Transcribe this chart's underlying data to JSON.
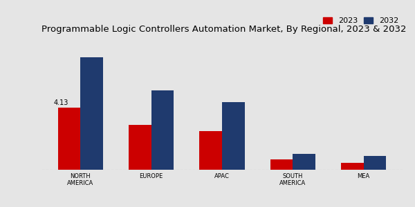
{
  "title": "Programmable Logic Controllers Automation Market, By Regional, 2023 & 2032",
  "categories": [
    "NORTH\nAMERICA",
    "EUROPE",
    "APAC",
    "SOUTH\nAMERICA",
    "MEA"
  ],
  "values_2023": [
    4.13,
    3.0,
    2.6,
    0.7,
    0.45
  ],
  "values_2032": [
    7.5,
    5.3,
    4.5,
    1.05,
    0.9
  ],
  "color_2023": "#cc0000",
  "color_2032": "#1f3a6e",
  "annotation_text": "4.13",
  "background_color": "#e5e5e5",
  "legend_labels": [
    "2023",
    "2032"
  ],
  "bar_width": 0.32,
  "title_fontsize": 9.5,
  "tick_fontsize": 6,
  "ylabel_fontsize": 7.5
}
